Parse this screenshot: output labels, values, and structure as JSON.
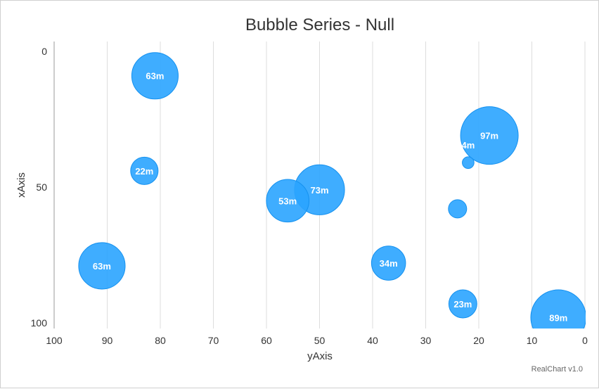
{
  "chart_data": {
    "type": "bubble",
    "title": "Bubble Series - Null",
    "xlabel": "yAxis",
    "ylabel": "xAxis",
    "credit": "RealChart v1.0",
    "xlim": [
      0,
      100
    ],
    "x_reversed": true,
    "x_ticks": [
      "100",
      "90",
      "80",
      "70",
      "60",
      "50",
      "40",
      "30",
      "20",
      "10",
      "0"
    ],
    "x_tick_values": [
      100,
      90,
      80,
      70,
      60,
      50,
      40,
      30,
      20,
      10,
      0
    ],
    "ylim": [
      0,
      100
    ],
    "y_ticks": [
      "0",
      "50",
      "100"
    ],
    "y_tick_values": [
      0,
      50,
      100
    ],
    "grid": "vertical",
    "color": "#2aa4ff",
    "points": [
      {
        "x": 81,
        "y": 9,
        "z": 63,
        "label": "63m"
      },
      {
        "x": 18,
        "y": 31,
        "z": 97,
        "label": "97m"
      },
      {
        "x": 22,
        "y": 41,
        "z": 4,
        "label": "4m"
      },
      {
        "x": 83,
        "y": 44,
        "z": 22,
        "label": "22m"
      },
      {
        "x": 50,
        "y": 51,
        "z": 73,
        "label": "73m"
      },
      {
        "x": 56,
        "y": 55,
        "z": 53,
        "label": "53m"
      },
      {
        "x": 24,
        "y": 58,
        "z": null,
        "label": ""
      },
      {
        "x": 91,
        "y": 79,
        "z": 63,
        "label": "63m"
      },
      {
        "x": 37,
        "y": 78,
        "z": 34,
        "label": "34m"
      },
      {
        "x": 23,
        "y": 93,
        "z": 23,
        "label": "23m"
      },
      {
        "x": 5,
        "y": 98,
        "z": 89,
        "label": "89m"
      }
    ]
  }
}
